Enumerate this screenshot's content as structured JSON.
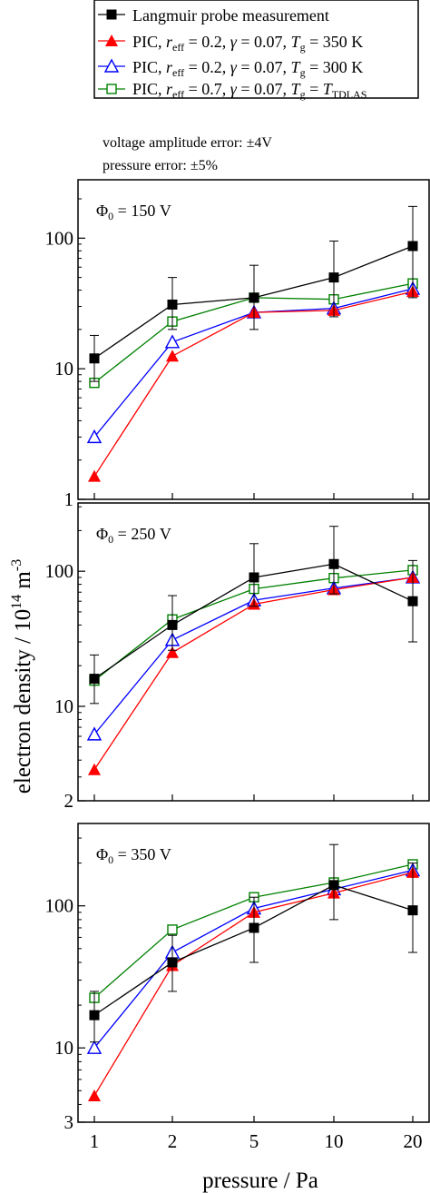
{
  "legend": {
    "entries": [
      {
        "label": "Langmuir probe measurement",
        "color": "#000000",
        "marker": "square-filled"
      },
      {
        "label": "PIC, r_eff = 0.2, γ = 0.07, T_g = 350 K",
        "color": "#ff0000",
        "marker": "triangle-filled",
        "parts": {
          "a": "PIC, ",
          "r": "r",
          "eff": "eff",
          "b": " = 0.2, ",
          "gamma": "γ",
          "c": " = 0.07, ",
          "T": "T",
          "g": "g",
          "d": " = 350 K"
        }
      },
      {
        "label": "PIC, r_eff = 0.2, γ = 0.07, T_g = 300 K",
        "color": "#0000ff",
        "marker": "triangle-open",
        "parts": {
          "a": "PIC, ",
          "r": "r",
          "eff": "eff",
          "b": " = 0.2, ",
          "gamma": "γ",
          "c": " = 0.07, ",
          "T": "T",
          "g": "g",
          "d": " = 300 K"
        }
      },
      {
        "label": "PIC, r_eff = 0.7, γ = 0.07, T_g = T_TDLAS",
        "color": "#008000",
        "marker": "square-open",
        "parts": {
          "a": "PIC, ",
          "r": "r",
          "eff": "eff",
          "b": " = 0.7, ",
          "gamma": "γ",
          "c": " = 0.07, ",
          "T": "T",
          "g": "g",
          "d": " = ",
          "T2": "T",
          "sub2": "TDLAS"
        }
      }
    ]
  },
  "notes": {
    "voltage_error": "voltage amplitude error: ±4V",
    "pressure_error": "pressure error: ±5%"
  },
  "axes": {
    "xlabel": "pressure / Pa",
    "ylabel_main": "electron density / 10",
    "ylabel_exp": "14",
    "ylabel_unit": " m",
    "ylabel_unit_exp": "-3"
  },
  "chart_data": [
    {
      "type": "line",
      "panel": 1,
      "annotation": {
        "phi": "Φ",
        "sub": "0",
        "rest": " = 150 V"
      },
      "x": [
        1,
        2,
        5,
        10,
        20
      ],
      "x_ticks": [
        "1",
        "2",
        "5",
        "10",
        "20"
      ],
      "yscale": "log",
      "ylim": [
        1,
        280
      ],
      "y_ticks": [
        {
          "v": 1,
          "label": "1"
        },
        {
          "v": 10,
          "label": "10"
        },
        {
          "v": 100,
          "label": "100"
        }
      ],
      "series": [
        {
          "name": "Langmuir probe measurement",
          "color": "#000000",
          "marker": "square-filled",
          "values": [
            12,
            31,
            35,
            50,
            87
          ],
          "err_low": [
            8,
            20,
            20,
            25,
            35
          ],
          "err_high": [
            18,
            50,
            62,
            95,
            175
          ]
        },
        {
          "name": "PIC, r_eff = 0.2, γ = 0.07, T_g = 350 K",
          "color": "#ff0000",
          "marker": "triangle-filled",
          "values": [
            1.5,
            12.5,
            27,
            28,
            39
          ]
        },
        {
          "name": "PIC, r_eff = 0.2, γ = 0.07, T_g = 300 K",
          "color": "#0000ff",
          "marker": "triangle-open",
          "values": [
            3.0,
            16,
            27,
            29,
            41
          ]
        },
        {
          "name": "PIC, r_eff = 0.7, γ = 0.07, T_g = T_TDLAS",
          "color": "#008000",
          "marker": "square-open",
          "values": [
            7.8,
            23,
            35,
            34,
            45
          ]
        }
      ]
    },
    {
      "type": "line",
      "panel": 2,
      "annotation": {
        "phi": "Φ",
        "sub": "0",
        "rest": " = 250 V"
      },
      "x": [
        1,
        2,
        5,
        10,
        20
      ],
      "x_ticks": [
        "1",
        "2",
        "5",
        "10",
        "20"
      ],
      "yscale": "log",
      "ylim": [
        2,
        320
      ],
      "y_ticks": [
        {
          "v": 2,
          "label": "2"
        },
        {
          "v": 10,
          "label": "10"
        },
        {
          "v": 100,
          "label": "100"
        }
      ],
      "series": [
        {
          "name": "Langmuir probe measurement",
          "color": "#000000",
          "marker": "square-filled",
          "values": [
            16,
            40,
            90,
            113,
            60
          ],
          "err_low": [
            10.5,
            26,
            55,
            68,
            30
          ],
          "err_high": [
            24,
            66,
            160,
            215,
            120
          ]
        },
        {
          "name": "PIC, r_eff = 0.2, γ = 0.07, T_g = 350 K",
          "color": "#ff0000",
          "marker": "triangle-filled",
          "values": [
            3.4,
            25,
            57,
            73,
            90
          ]
        },
        {
          "name": "PIC, r_eff = 0.2, γ = 0.07, T_g = 300 K",
          "color": "#0000ff",
          "marker": "triangle-open",
          "values": [
            6.2,
            31,
            61,
            75,
            90
          ]
        },
        {
          "name": "PIC, r_eff = 0.7, γ = 0.07, T_g = T_TDLAS",
          "color": "#008000",
          "marker": "square-open",
          "values": [
            15.5,
            44,
            74,
            89,
            102
          ]
        }
      ]
    },
    {
      "type": "line",
      "panel": 3,
      "annotation": {
        "phi": "Φ",
        "sub": "0",
        "rest": " = 350 V"
      },
      "x": [
        1,
        2,
        5,
        10,
        20
      ],
      "x_ticks": [
        "1",
        "2",
        "5",
        "10",
        "20"
      ],
      "yscale": "log",
      "ylim": [
        3,
        380
      ],
      "y_ticks": [
        {
          "v": 3,
          "label": "3"
        },
        {
          "v": 10,
          "label": "10"
        },
        {
          "v": 100,
          "label": "100"
        }
      ],
      "series": [
        {
          "name": "Langmuir probe measurement",
          "color": "#000000",
          "marker": "square-filled",
          "values": [
            17,
            40,
            70,
            140,
            93
          ],
          "err_low": [
            11,
            25,
            40,
            80,
            47
          ],
          "err_high": [
            25,
            62,
            115,
            270,
            200
          ]
        },
        {
          "name": "PIC, r_eff = 0.2, γ = 0.07, T_g = 350 K",
          "color": "#ff0000",
          "marker": "triangle-filled",
          "values": [
            4.6,
            38,
            90,
            123,
            172
          ]
        },
        {
          "name": "PIC, r_eff = 0.2, γ = 0.07, T_g = 300 K",
          "color": "#0000ff",
          "marker": "triangle-open",
          "values": [
            10,
            47,
            96,
            131,
            178
          ]
        },
        {
          "name": "PIC, r_eff = 0.7, γ = 0.07, T_g = T_TDLAS",
          "color": "#008000",
          "marker": "square-open",
          "values": [
            22.5,
            68,
            115,
            146,
            196
          ]
        }
      ]
    }
  ]
}
